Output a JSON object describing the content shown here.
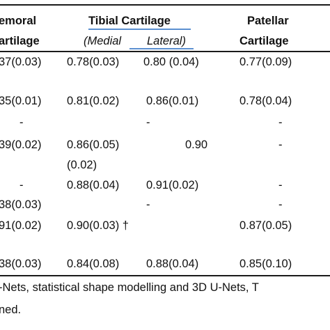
{
  "header": {
    "col_femoral_line1": "emoral",
    "col_femoral_line2": "artilage",
    "col_tibial": "Tibial  Cartilage",
    "col_tibial_medial": "(Medial",
    "col_tibial_lateral": "Lateral)",
    "col_patellar_line1": "Patellar",
    "col_patellar_line2": "Cartilage"
  },
  "rows": [
    {
      "femoral": "37(0.03)",
      "medial": "0.78(0.03)",
      "lateral": "0.80 (0.04)",
      "patellar": "0.77(0.09)"
    },
    {
      "femoral": "35(0.01)",
      "medial": "0.81(0.02)",
      "lateral": "0.86(0.01)",
      "patellar": "0.78(0.04)"
    },
    {
      "femoral": "-",
      "medial": "",
      "lateral": "-",
      "patellar": "-"
    },
    {
      "femoral": "39(0.02)",
      "medial": "0.86(0.05)",
      "lateral": "0.90",
      "patellar": "-"
    },
    {
      "femoral": "",
      "medial": "(0.02)",
      "lateral": "",
      "patellar": ""
    },
    {
      "femoral": "-",
      "medial": "0.88(0.04)",
      "lateral": "0.91(0.02)",
      "patellar": "-"
    },
    {
      "femoral": "38(0.03)",
      "medial": "",
      "lateral": "-",
      "patellar": "-"
    },
    {
      "femoral": "91(0.02)",
      "medial": "0.90(0.03) †",
      "lateral": "",
      "patellar": "0.87(0.05)"
    },
    {
      "femoral": "38(0.03)",
      "medial": "0.84(0.08)",
      "lateral": "0.88(0.04)",
      "patellar": "0.85(0.10)"
    }
  ],
  "footnote": {
    "line1": "-Nets, statistical shape modelling and 3D U-Nets, T",
    "line2": "ned."
  },
  "colors": {
    "text": "#111111",
    "rule": "#1a1a1a",
    "tibial_underline": "#5b8fd0"
  }
}
